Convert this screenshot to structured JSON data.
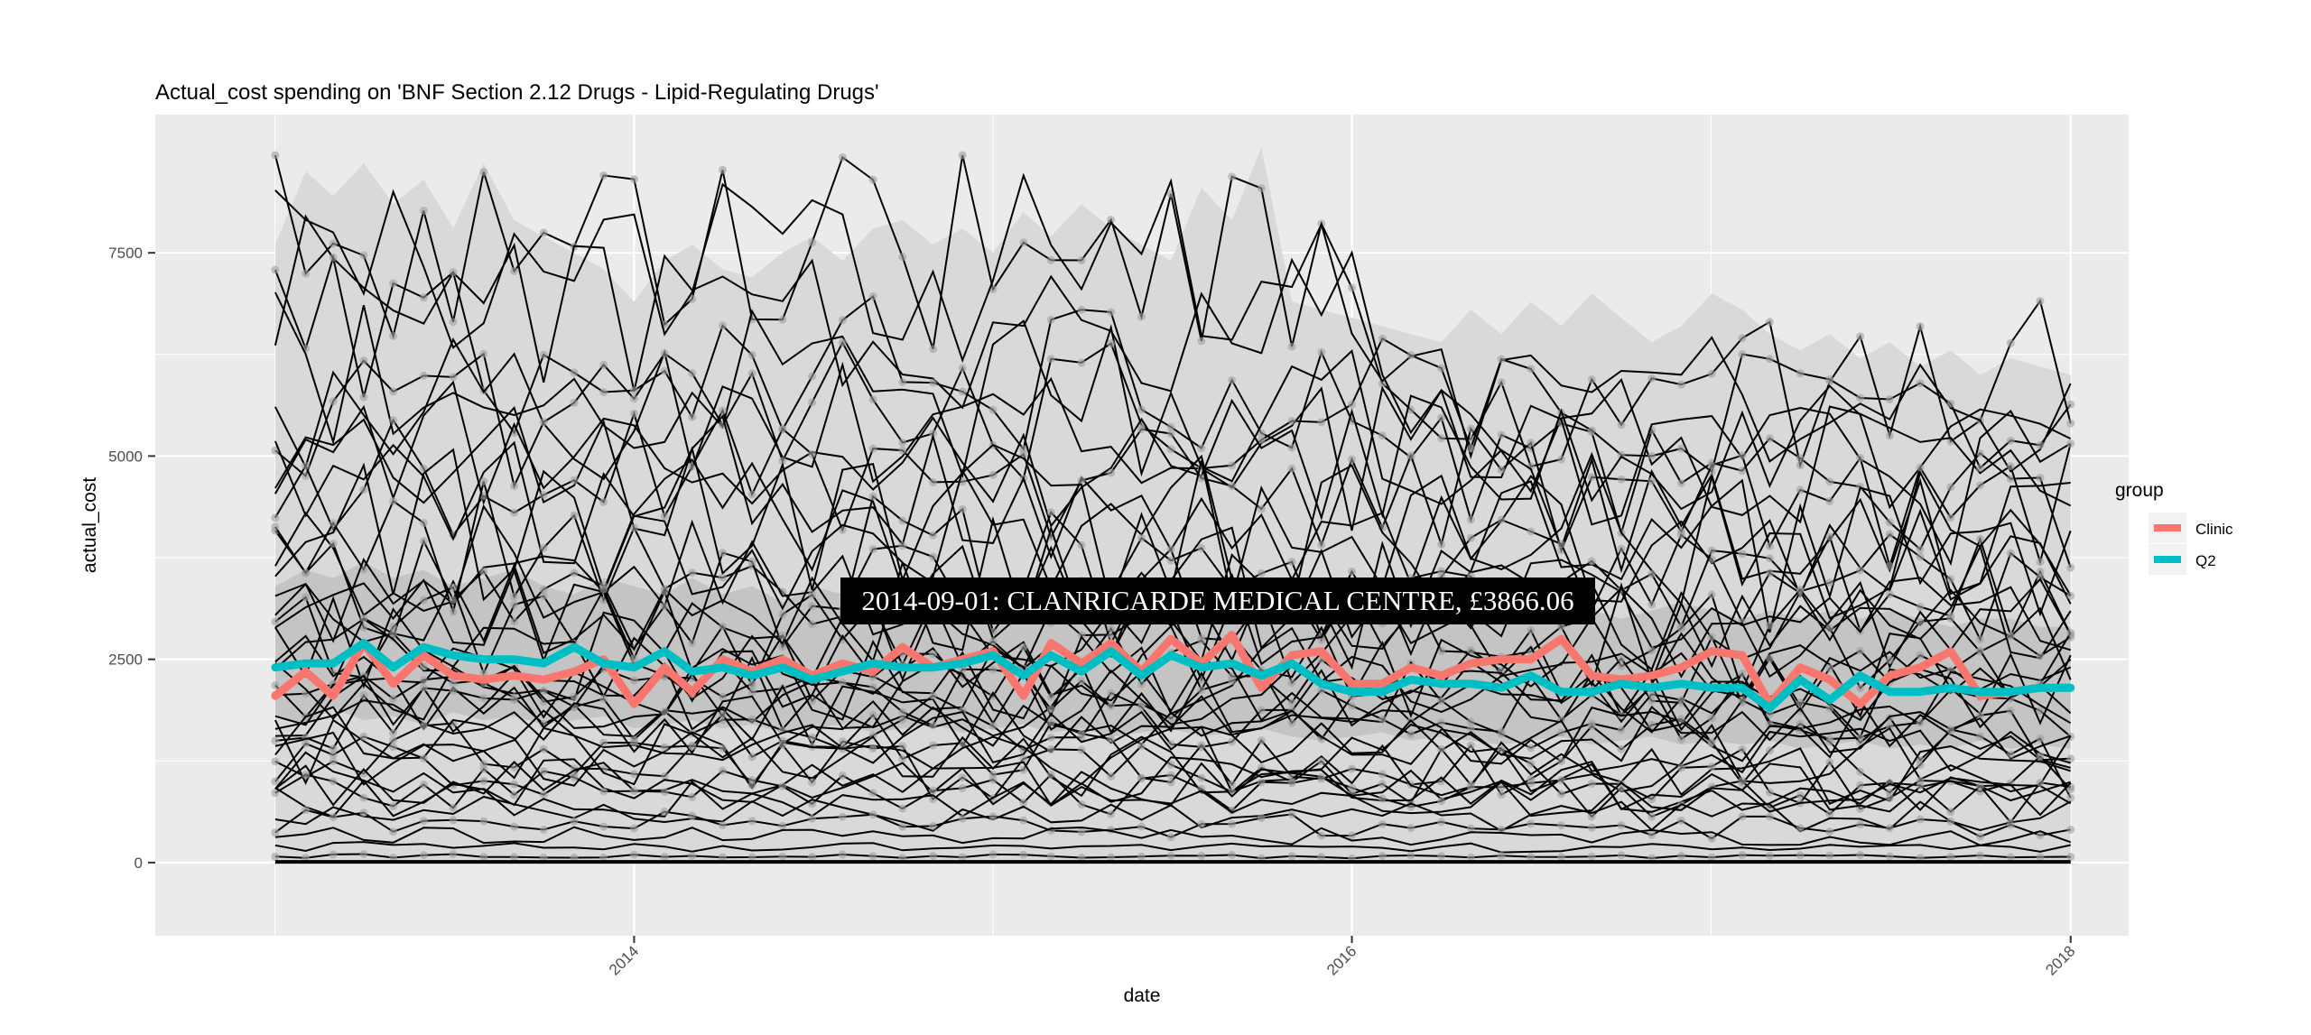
{
  "chart_data": {
    "type": "line",
    "title": "Actual_cost spending on 'BNF Section 2.12 Drugs - Lipid-Regulating Drugs'",
    "xlabel": "date",
    "ylabel": "actual_cost",
    "xlim": [
      "2012-09-01",
      "2018-03-01"
    ],
    "ylim": [
      -900,
      9200
    ],
    "x_ticks": [
      "2014-01-01",
      "2016-01-01",
      "2018-01-01"
    ],
    "x_tick_labels": [
      "2014",
      "2016",
      "2018"
    ],
    "y_ticks": [
      0,
      2500,
      5000,
      7500
    ],
    "y_tick_labels": [
      "0",
      "2500",
      "5000",
      "7500"
    ],
    "grid": true,
    "x_start": "2013-01-01",
    "x_end": "2018-01-01",
    "n_months": 61,
    "background_lines": "about 45 practices, monthly actual_cost, drawn in black",
    "bands": [
      {
        "name": "outer",
        "color": "#d9d9d9",
        "lower": 0,
        "upper": [
          7600,
          8500,
          8200,
          8600,
          8100,
          8400,
          7800,
          8600,
          7900,
          7700,
          7500,
          7300,
          6900,
          7400,
          7600,
          7300,
          7200,
          7500,
          7700,
          7400,
          7800,
          7900,
          7600,
          7800,
          7500,
          8000,
          7700,
          8100,
          7800,
          7600,
          7400,
          8300,
          7900,
          8800,
          6900,
          6800,
          6700,
          6600,
          6500,
          6400,
          6800,
          6500,
          6900,
          6600,
          7000,
          6700,
          6400,
          6600,
          7000,
          6800,
          6500,
          6300,
          6500,
          6200,
          6400,
          6100,
          6300,
          6000,
          6200,
          6100,
          6000
        ]
      },
      {
        "name": "inner",
        "color": "#c4c4c4",
        "lower": [
          1800,
          1700,
          1900,
          1750,
          1800,
          1700,
          1850,
          1750,
          1800,
          1700,
          1750,
          1800,
          1650,
          1700,
          1750,
          1650,
          1700,
          1600,
          1650,
          1700,
          1600,
          1650,
          1700,
          1600,
          1650,
          1700,
          1600,
          1650,
          1550,
          1600,
          1650,
          1550,
          1600,
          1650,
          1550,
          1500,
          1550,
          1600,
          1500,
          1550,
          1500,
          1450,
          1500,
          1550,
          1450,
          1500,
          1550,
          1450,
          1500,
          1450,
          1500,
          1400,
          1450,
          1500,
          1400,
          1450,
          1400,
          1500,
          1400,
          1450,
          1400
        ],
        "upper": [
          3400,
          3600,
          3500,
          3700,
          3500,
          3600,
          3400,
          3500,
          3600,
          3400,
          3300,
          3500,
          3400,
          3300,
          3500,
          3300,
          3400,
          3200,
          3400,
          3300,
          3200,
          3400,
          3300,
          3400,
          3300,
          3200,
          3300,
          3400,
          3200,
          3300,
          3300,
          3200,
          3300,
          3200,
          3200,
          3100,
          3200,
          3100,
          3300,
          3200,
          3100,
          3200,
          3100,
          3200,
          3100,
          3000,
          3100,
          3200,
          3100,
          3000,
          3100,
          3000,
          3100,
          3000,
          3100,
          3000,
          2900,
          3000,
          3000,
          2900,
          2900
        ]
      }
    ],
    "series": [
      {
        "name": "Clinic",
        "color": "#F8766D",
        "values": [
          2050,
          2350,
          2050,
          2700,
          2200,
          2550,
          2300,
          2250,
          2300,
          2250,
          2350,
          2500,
          1950,
          2400,
          2100,
          2500,
          2350,
          2500,
          2300,
          2450,
          2350,
          2650,
          2400,
          2500,
          2600,
          2050,
          2700,
          2450,
          2700,
          2350,
          2750,
          2450,
          2800,
          2150,
          2550,
          2600,
          2200,
          2200,
          2400,
          2300,
          2450,
          2500,
          2500,
          2750,
          2300,
          2250,
          2300,
          2400,
          2600,
          2550,
          1950,
          2400,
          2250,
          1950,
          2300,
          2400,
          2600,
          2050,
          2100,
          2150,
          2150
        ]
      },
      {
        "name": "Q2",
        "color": "#00BFC4",
        "values": [
          2400,
          2450,
          2450,
          2700,
          2400,
          2650,
          2550,
          2500,
          2500,
          2450,
          2650,
          2450,
          2400,
          2600,
          2350,
          2400,
          2300,
          2400,
          2250,
          2350,
          2450,
          2400,
          2400,
          2450,
          2550,
          2300,
          2550,
          2350,
          2600,
          2300,
          2550,
          2400,
          2450,
          2300,
          2450,
          2200,
          2100,
          2100,
          2250,
          2200,
          2200,
          2150,
          2300,
          2100,
          2100,
          2200,
          2150,
          2200,
          2150,
          2150,
          1900,
          2250,
          2000,
          2300,
          2100,
          2100,
          2150,
          2100,
          2100,
          2150,
          2150
        ]
      }
    ],
    "legend": {
      "title": "group",
      "position": "right",
      "entries": [
        "Clinic",
        "Q2"
      ]
    },
    "annotation": {
      "text": "2014-09-01: CLANRICARDE MEDICAL CENTRE, £3866.06",
      "x": "2014-09-01",
      "y": 3866.06
    }
  }
}
